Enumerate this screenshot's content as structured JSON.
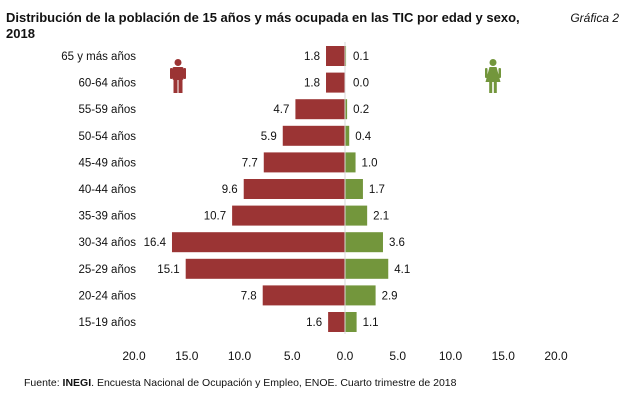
{
  "header": {
    "title": "Distribución de la población de 15 años y más ocupada en las TIC por edad y sexo, 2018",
    "chart_label": "Gráfica 2"
  },
  "footer": {
    "source_prefix": "Fuente: ",
    "source_org": "INEGI",
    "source_text": ". Encuesta Nacional de Ocupación y Empleo, ENOE. Cuarto trimestre de 2018"
  },
  "icons": {
    "men": "male-person-icon",
    "women": "female-person-icon"
  },
  "chart_data": {
    "type": "bar",
    "orientation": "horizontal-pyramid",
    "title": "Distribución de la población de 15 años y más ocupada en las TIC por edad y sexo, 2018",
    "xlabel": "",
    "ylabel": "",
    "categories": [
      "65 y más años",
      "60-64 años",
      "55-59 años",
      "50-54 años",
      "45-49 años",
      "40-44 años",
      "35-39 años",
      "30-34 años",
      "25-29 años",
      "20-24 años",
      "15-19 años"
    ],
    "series": [
      {
        "values": [
          1.8,
          1.8,
          4.7,
          5.9,
          7.7,
          9.6,
          10.7,
          16.4,
          15.1,
          7.8,
          1.6
        ],
        "color": "#9b3434",
        "side": "left"
      },
      {
        "values": [
          0.1,
          0.0,
          0.2,
          0.4,
          1.0,
          1.7,
          2.1,
          3.6,
          4.1,
          2.9,
          1.1
        ],
        "color": "#73963c",
        "side": "right"
      }
    ],
    "value_labels": {
      "left": [
        "1.8",
        "1.8",
        "4.7",
        "5.9",
        "7.7",
        "9.6",
        "10.7",
        "16.4",
        "15.1",
        "7.8",
        "1.6"
      ],
      "right": [
        "0.1",
        "0.0",
        "0.2",
        "0.4",
        "1.0",
        "1.7",
        "2.1",
        "3.6",
        "4.1",
        "2.9",
        "1.1"
      ]
    },
    "xlim": [
      -20,
      20
    ],
    "x_ticks": [
      "20.0",
      "15.0",
      "10.0",
      "5.0",
      "0.0",
      "5.0",
      "10.0",
      "15.0",
      "20.0"
    ],
    "grid": false,
    "legend": "icons-top"
  }
}
